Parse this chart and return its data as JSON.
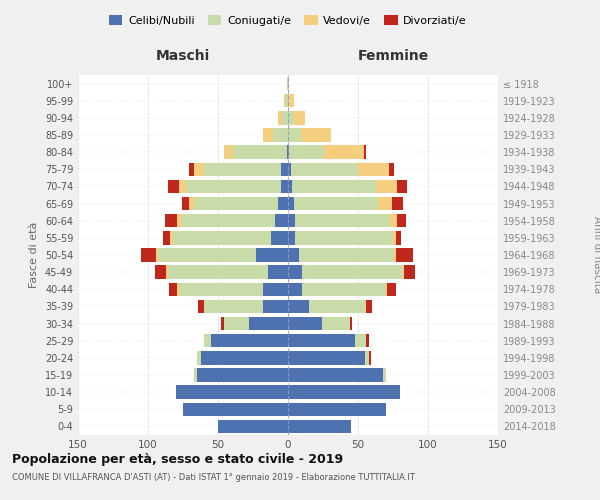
{
  "age_groups": [
    "0-4",
    "5-9",
    "10-14",
    "15-19",
    "20-24",
    "25-29",
    "30-34",
    "35-39",
    "40-44",
    "45-49",
    "50-54",
    "55-59",
    "60-64",
    "65-69",
    "70-74",
    "75-79",
    "80-84",
    "85-89",
    "90-94",
    "95-99",
    "100+"
  ],
  "birth_years": [
    "2014-2018",
    "2009-2013",
    "2004-2008",
    "1999-2003",
    "1994-1998",
    "1989-1993",
    "1984-1988",
    "1979-1983",
    "1974-1978",
    "1969-1973",
    "1964-1968",
    "1959-1963",
    "1954-1958",
    "1949-1953",
    "1944-1948",
    "1939-1943",
    "1934-1938",
    "1929-1933",
    "1924-1928",
    "1919-1923",
    "≤ 1918"
  ],
  "males": {
    "celibi": [
      50,
      75,
      80,
      65,
      62,
      55,
      28,
      18,
      18,
      14,
      23,
      12,
      9,
      7,
      5,
      5,
      1,
      0,
      0,
      0,
      0
    ],
    "coniugati": [
      0,
      0,
      0,
      2,
      3,
      5,
      18,
      42,
      60,
      72,
      70,
      70,
      67,
      60,
      68,
      55,
      38,
      11,
      4,
      2,
      1
    ],
    "vedovi": [
      0,
      0,
      0,
      0,
      0,
      0,
      0,
      0,
      1,
      1,
      1,
      2,
      3,
      4,
      5,
      7,
      7,
      7,
      3,
      1,
      0
    ],
    "divorziati": [
      0,
      0,
      0,
      0,
      0,
      0,
      2,
      4,
      6,
      8,
      11,
      5,
      9,
      5,
      8,
      4,
      0,
      0,
      0,
      0,
      0
    ]
  },
  "females": {
    "nubili": [
      45,
      70,
      80,
      68,
      55,
      48,
      24,
      15,
      10,
      10,
      8,
      5,
      5,
      4,
      3,
      2,
      1,
      0,
      0,
      0,
      0
    ],
    "coniugate": [
      0,
      0,
      0,
      2,
      3,
      8,
      20,
      40,
      60,
      72,
      68,
      70,
      68,
      60,
      60,
      48,
      25,
      9,
      4,
      1,
      0
    ],
    "vedove": [
      0,
      0,
      0,
      0,
      0,
      0,
      0,
      1,
      1,
      1,
      1,
      2,
      5,
      10,
      15,
      22,
      28,
      22,
      8,
      3,
      1
    ],
    "divorziate": [
      0,
      0,
      0,
      0,
      1,
      2,
      2,
      4,
      6,
      8,
      12,
      4,
      6,
      8,
      7,
      4,
      2,
      0,
      0,
      0,
      0
    ]
  },
  "colors": {
    "celibi_nubili": "#4e72b0",
    "coniugati": "#c8dba8",
    "vedovi": "#f5ce80",
    "divorziati": "#c0281e"
  },
  "legend_labels": [
    "Celibi/Nubili",
    "Coniugati/e",
    "Vedovi/e",
    "Divorziati/e"
  ],
  "title": "Popolazione per età, sesso e stato civile - 2019",
  "subtitle": "COMUNE DI VILLAFRANCA D'ASTI (AT) - Dati ISTAT 1° gennaio 2019 - Elaborazione TUTTITALIA.IT",
  "xlabel_left": "Maschi",
  "xlabel_right": "Femmine",
  "ylabel_left": "Fasce di età",
  "ylabel_right": "Anni di nascita",
  "xlim": 150,
  "bg_color": "#f0f0f0",
  "plot_bg_color": "#ffffff",
  "grid_color": "#cccccc"
}
